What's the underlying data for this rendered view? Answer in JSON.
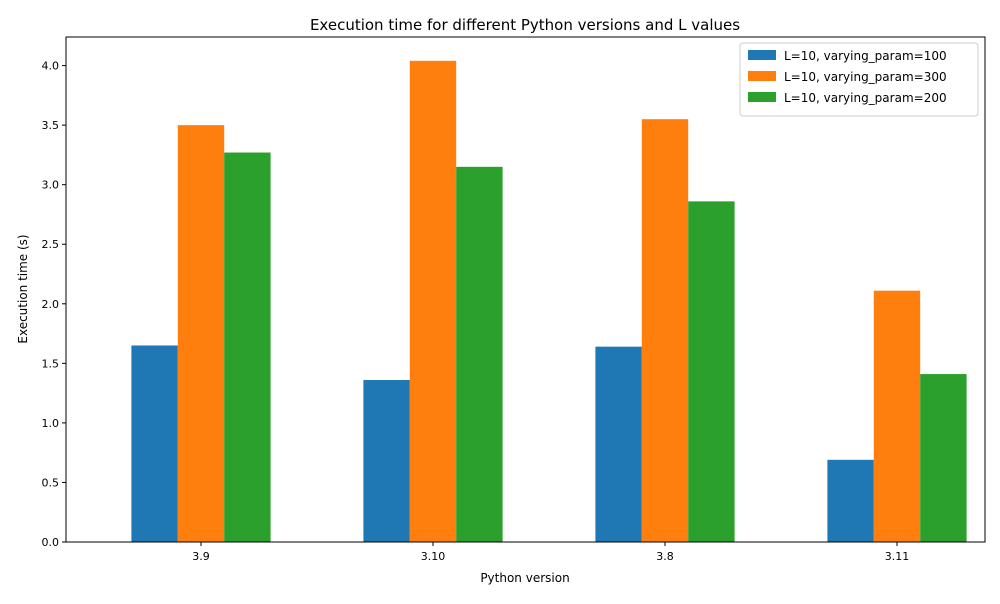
{
  "chart_data": {
    "type": "bar",
    "title": "Execution time for different Python versions and L values",
    "xlabel": "Python version",
    "ylabel": "Execution time (s)",
    "categories": [
      "3.9",
      "3.10",
      "3.8",
      "3.11"
    ],
    "series": [
      {
        "name": "L=10, varying_param=100",
        "color": "#1f77b4",
        "values": [
          1.65,
          1.36,
          1.64,
          0.69
        ]
      },
      {
        "name": "L=10, varying_param=300",
        "color": "#ff7f0e",
        "values": [
          3.5,
          4.04,
          3.55,
          2.11
        ]
      },
      {
        "name": "L=10, varying_param=200",
        "color": "#2ca02c",
        "values": [
          3.27,
          3.15,
          2.86,
          1.41
        ]
      }
    ],
    "ylim": [
      0,
      4.24
    ],
    "yticks": [
      0.0,
      0.5,
      1.0,
      1.5,
      2.0,
      2.5,
      3.0,
      3.5,
      4.0
    ],
    "ytick_labels": [
      "0.0",
      "0.5",
      "1.0",
      "1.5",
      "2.0",
      "2.5",
      "3.0",
      "3.5",
      "4.0"
    ],
    "grid": false,
    "legend_position": "top-right"
  }
}
